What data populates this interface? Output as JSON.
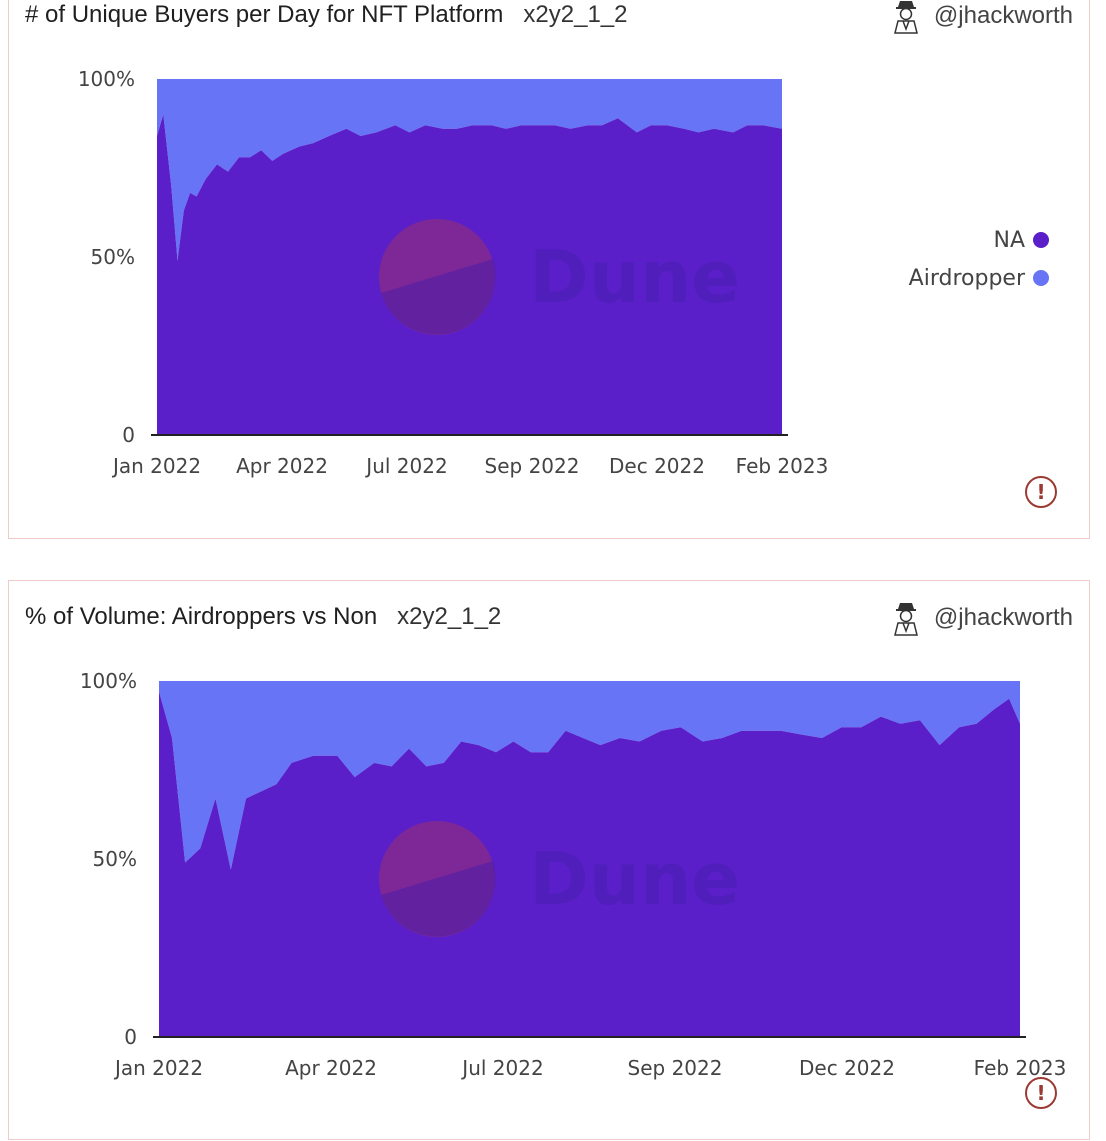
{
  "author": "@jhackworth",
  "watermark": "Dune",
  "colors": {
    "NA": "#5b1fc9",
    "Airdropper": "#6674f5"
  },
  "chart_data": [
    {
      "type": "area",
      "stacked": "percent",
      "title": "# of Unique Buyers per Day for NFT Platform",
      "query": "x2y2_1_2",
      "x_start": "2022-01-01",
      "x_end": "2023-02-01",
      "x_tick_labels": [
        "Jan 2022",
        "Apr 2022",
        "Jul 2022",
        "Sep 2022",
        "Dec 2022",
        "Feb 2023"
      ],
      "y_tick_labels": [
        "0",
        "50%",
        "100%"
      ],
      "ylim": [
        0,
        100
      ],
      "legend": {
        "placement": "right",
        "entries": [
          "NA",
          "Airdropper"
        ]
      },
      "x": [
        "2022-01-01",
        "2022-01-05",
        "2022-01-10",
        "2022-01-14",
        "2022-01-18",
        "2022-01-22",
        "2022-01-26",
        "2022-02-01",
        "2022-02-08",
        "2022-02-15",
        "2022-02-22",
        "2022-03-01",
        "2022-03-08",
        "2022-03-15",
        "2022-03-22",
        "2022-04-01",
        "2022-04-10",
        "2022-04-20",
        "2022-05-01",
        "2022-05-10",
        "2022-05-20",
        "2022-06-01",
        "2022-06-10",
        "2022-06-20",
        "2022-07-01",
        "2022-07-10",
        "2022-07-20",
        "2022-08-01",
        "2022-08-10",
        "2022-08-20",
        "2022-09-01",
        "2022-09-10",
        "2022-09-20",
        "2022-10-01",
        "2022-10-10",
        "2022-10-20",
        "2022-11-01",
        "2022-11-10",
        "2022-11-20",
        "2022-12-01",
        "2022-12-10",
        "2022-12-20",
        "2023-01-01",
        "2023-01-10",
        "2023-01-20",
        "2023-02-01"
      ],
      "series": [
        {
          "name": "NA",
          "values": [
            84,
            90,
            70,
            49,
            63,
            68,
            67,
            72,
            76,
            74,
            78,
            78,
            80,
            77,
            79,
            81,
            82,
            84,
            86,
            84,
            85,
            87,
            85,
            87,
            86,
            86,
            87,
            87,
            86,
            87,
            87,
            87,
            86,
            87,
            87,
            89,
            85,
            87,
            87,
            86,
            85,
            86,
            85,
            87,
            87,
            86
          ]
        },
        {
          "name": "Airdropper",
          "values": [
            16,
            10,
            30,
            51,
            37,
            32,
            33,
            28,
            24,
            26,
            22,
            22,
            20,
            23,
            21,
            19,
            18,
            16,
            14,
            16,
            15,
            13,
            15,
            13,
            14,
            14,
            13,
            13,
            14,
            13,
            13,
            13,
            14,
            13,
            13,
            11,
            15,
            13,
            13,
            14,
            15,
            14,
            15,
            13,
            13,
            14
          ]
        }
      ]
    },
    {
      "type": "area",
      "stacked": "percent",
      "title": "% of Volume: Airdroppers vs Non",
      "query": "x2y2_1_2",
      "x_start": "2022-01-01",
      "x_end": "2023-02-01",
      "x_tick_labels": [
        "Jan 2022",
        "Apr 2022",
        "Jul 2022",
        "Sep 2022",
        "Dec 2022",
        "Feb 2023"
      ],
      "y_tick_labels": [
        "0",
        "50%",
        "100%"
      ],
      "ylim": [
        0,
        100
      ],
      "legend": {
        "placement": "none",
        "entries": []
      },
      "x": [
        "2022-01-01",
        "2022-01-07",
        "2022-01-13",
        "2022-01-20",
        "2022-01-27",
        "2022-02-03",
        "2022-02-10",
        "2022-02-17",
        "2022-02-24",
        "2022-03-03",
        "2022-03-13",
        "2022-03-24",
        "2022-04-01",
        "2022-04-10",
        "2022-04-18",
        "2022-04-26",
        "2022-05-04",
        "2022-05-12",
        "2022-05-20",
        "2022-05-28",
        "2022-06-05",
        "2022-06-13",
        "2022-06-21",
        "2022-06-29",
        "2022-07-07",
        "2022-07-15",
        "2022-07-23",
        "2022-08-01",
        "2022-08-10",
        "2022-08-20",
        "2022-08-29",
        "2022-09-08",
        "2022-09-17",
        "2022-09-26",
        "2022-10-05",
        "2022-10-14",
        "2022-10-23",
        "2022-11-02",
        "2022-11-11",
        "2022-11-20",
        "2022-11-29",
        "2022-12-08",
        "2022-12-17",
        "2022-12-26",
        "2023-01-04",
        "2023-01-12",
        "2023-01-20",
        "2023-01-27",
        "2023-02-01"
      ],
      "series": [
        {
          "name": "NA",
          "values": [
            97,
            84,
            49,
            53,
            67,
            47,
            67,
            69,
            71,
            77,
            79,
            79,
            73,
            77,
            76,
            81,
            76,
            77,
            83,
            82,
            80,
            83,
            80,
            80,
            86,
            84,
            82,
            84,
            83,
            86,
            87,
            83,
            84,
            86,
            86,
            86,
            85,
            84,
            87,
            87,
            90,
            88,
            89,
            82,
            87,
            88,
            92,
            95,
            88
          ]
        },
        {
          "name": "Airdropper",
          "values": [
            3,
            16,
            51,
            47,
            33,
            53,
            33,
            31,
            29,
            23,
            21,
            21,
            27,
            23,
            24,
            19,
            24,
            23,
            17,
            18,
            20,
            17,
            20,
            20,
            14,
            16,
            18,
            16,
            17,
            14,
            13,
            17,
            16,
            14,
            14,
            14,
            15,
            16,
            13,
            13,
            10,
            12,
            11,
            18,
            13,
            12,
            8,
            5,
            12
          ]
        }
      ]
    }
  ]
}
